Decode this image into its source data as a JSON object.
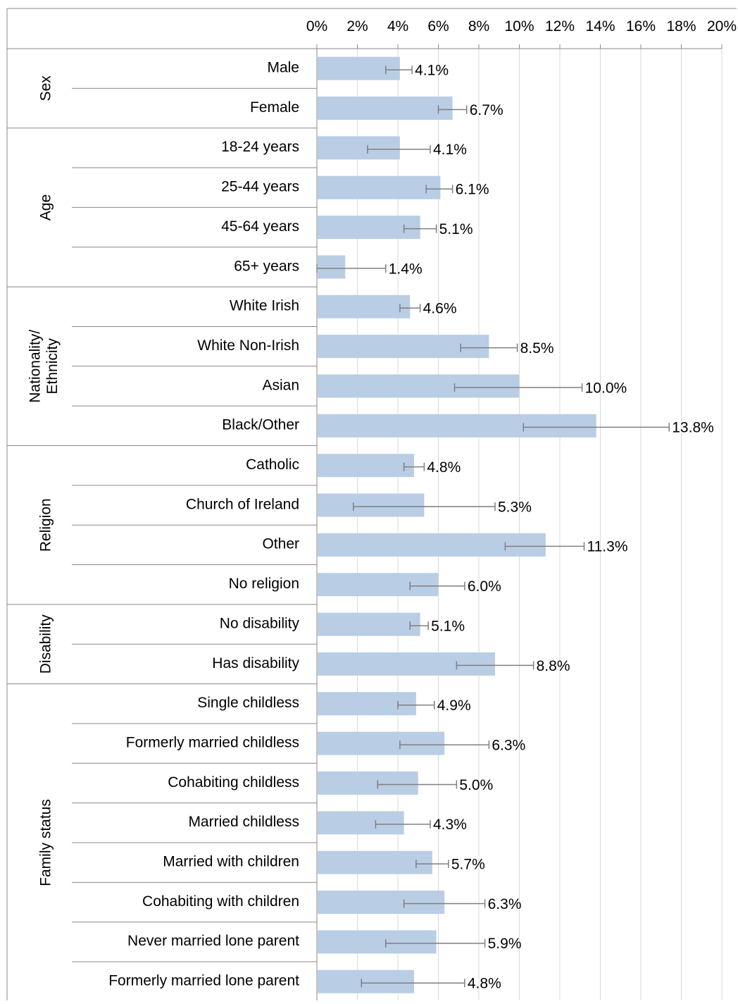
{
  "chart_data": {
    "type": "bar",
    "orientation": "horizontal",
    "xlim": [
      0,
      20
    ],
    "x_ticks": [
      "0%",
      "2%",
      "4%",
      "6%",
      "8%",
      "10%",
      "12%",
      "14%",
      "16%",
      "18%",
      "20%"
    ],
    "grid": true,
    "bar_color": "#b9cde5",
    "error_color": "#7f7f7f",
    "groups": [
      {
        "name": "Sex",
        "rows": [
          {
            "label": "Male",
            "value": 4.1,
            "value_label": "4.1%",
            "err_low": 3.4,
            "err_high": 4.7
          },
          {
            "label": "Female",
            "value": 6.7,
            "value_label": "6.7%",
            "err_low": 6.0,
            "err_high": 7.4
          }
        ]
      },
      {
        "name": "Age",
        "rows": [
          {
            "label": "18-24 years",
            "value": 4.1,
            "value_label": "4.1%",
            "err_low": 2.5,
            "err_high": 5.6
          },
          {
            "label": "25-44 years",
            "value": 6.1,
            "value_label": "6.1%",
            "err_low": 5.4,
            "err_high": 6.7
          },
          {
            "label": "45-64 years",
            "value": 5.1,
            "value_label": "5.1%",
            "err_low": 4.3,
            "err_high": 5.9
          },
          {
            "label": "65+ years",
            "value": 1.4,
            "value_label": "1.4%",
            "err_low": 0.0,
            "err_high": 3.4
          }
        ]
      },
      {
        "name": "Nationality/ Ethnicity",
        "rows": [
          {
            "label": "White Irish",
            "value": 4.6,
            "value_label": "4.6%",
            "err_low": 4.1,
            "err_high": 5.1
          },
          {
            "label": "White Non-Irish",
            "value": 8.5,
            "value_label": "8.5%",
            "err_low": 7.1,
            "err_high": 9.9
          },
          {
            "label": "Asian",
            "value": 10.0,
            "value_label": "10.0%",
            "err_low": 6.8,
            "err_high": 13.1
          },
          {
            "label": "Black/Other",
            "value": 13.8,
            "value_label": "13.8%",
            "err_low": 10.2,
            "err_high": 17.4
          }
        ]
      },
      {
        "name": "Religion",
        "rows": [
          {
            "label": "Catholic",
            "value": 4.8,
            "value_label": "4.8%",
            "err_low": 4.3,
            "err_high": 5.3
          },
          {
            "label": "Church of Ireland",
            "value": 5.3,
            "value_label": "5.3%",
            "err_low": 1.8,
            "err_high": 8.8
          },
          {
            "label": "Other",
            "value": 11.3,
            "value_label": "11.3%",
            "err_low": 9.3,
            "err_high": 13.2
          },
          {
            "label": "No religion",
            "value": 6.0,
            "value_label": "6.0%",
            "err_low": 4.6,
            "err_high": 7.3
          }
        ]
      },
      {
        "name": "Disability",
        "rows": [
          {
            "label": "No disability",
            "value": 5.1,
            "value_label": "5.1%",
            "err_low": 4.6,
            "err_high": 5.5
          },
          {
            "label": "Has disability",
            "value": 8.8,
            "value_label": "8.8%",
            "err_low": 6.9,
            "err_high": 10.7
          }
        ]
      },
      {
        "name": "Family status",
        "rows": [
          {
            "label": "Single childless",
            "value": 4.9,
            "value_label": "4.9%",
            "err_low": 4.0,
            "err_high": 5.8
          },
          {
            "label": "Formerly married childless",
            "value": 6.3,
            "value_label": "6.3%",
            "err_low": 4.1,
            "err_high": 8.5
          },
          {
            "label": "Cohabiting childless",
            "value": 5.0,
            "value_label": "5.0%",
            "err_low": 3.0,
            "err_high": 6.9
          },
          {
            "label": "Married childless",
            "value": 4.3,
            "value_label": "4.3%",
            "err_low": 2.9,
            "err_high": 5.6
          },
          {
            "label": "Married with children",
            "value": 5.7,
            "value_label": "5.7%",
            "err_low": 4.9,
            "err_high": 6.5
          },
          {
            "label": "Cohabiting with children",
            "value": 6.3,
            "value_label": "6.3%",
            "err_low": 4.3,
            "err_high": 8.3
          },
          {
            "label": "Never married lone parent",
            "value": 5.9,
            "value_label": "5.9%",
            "err_low": 3.4,
            "err_high": 8.3
          },
          {
            "label": "Formerly married lone parent",
            "value": 4.8,
            "value_label": "4.8%",
            "err_low": 2.2,
            "err_high": 7.3
          }
        ]
      }
    ]
  }
}
